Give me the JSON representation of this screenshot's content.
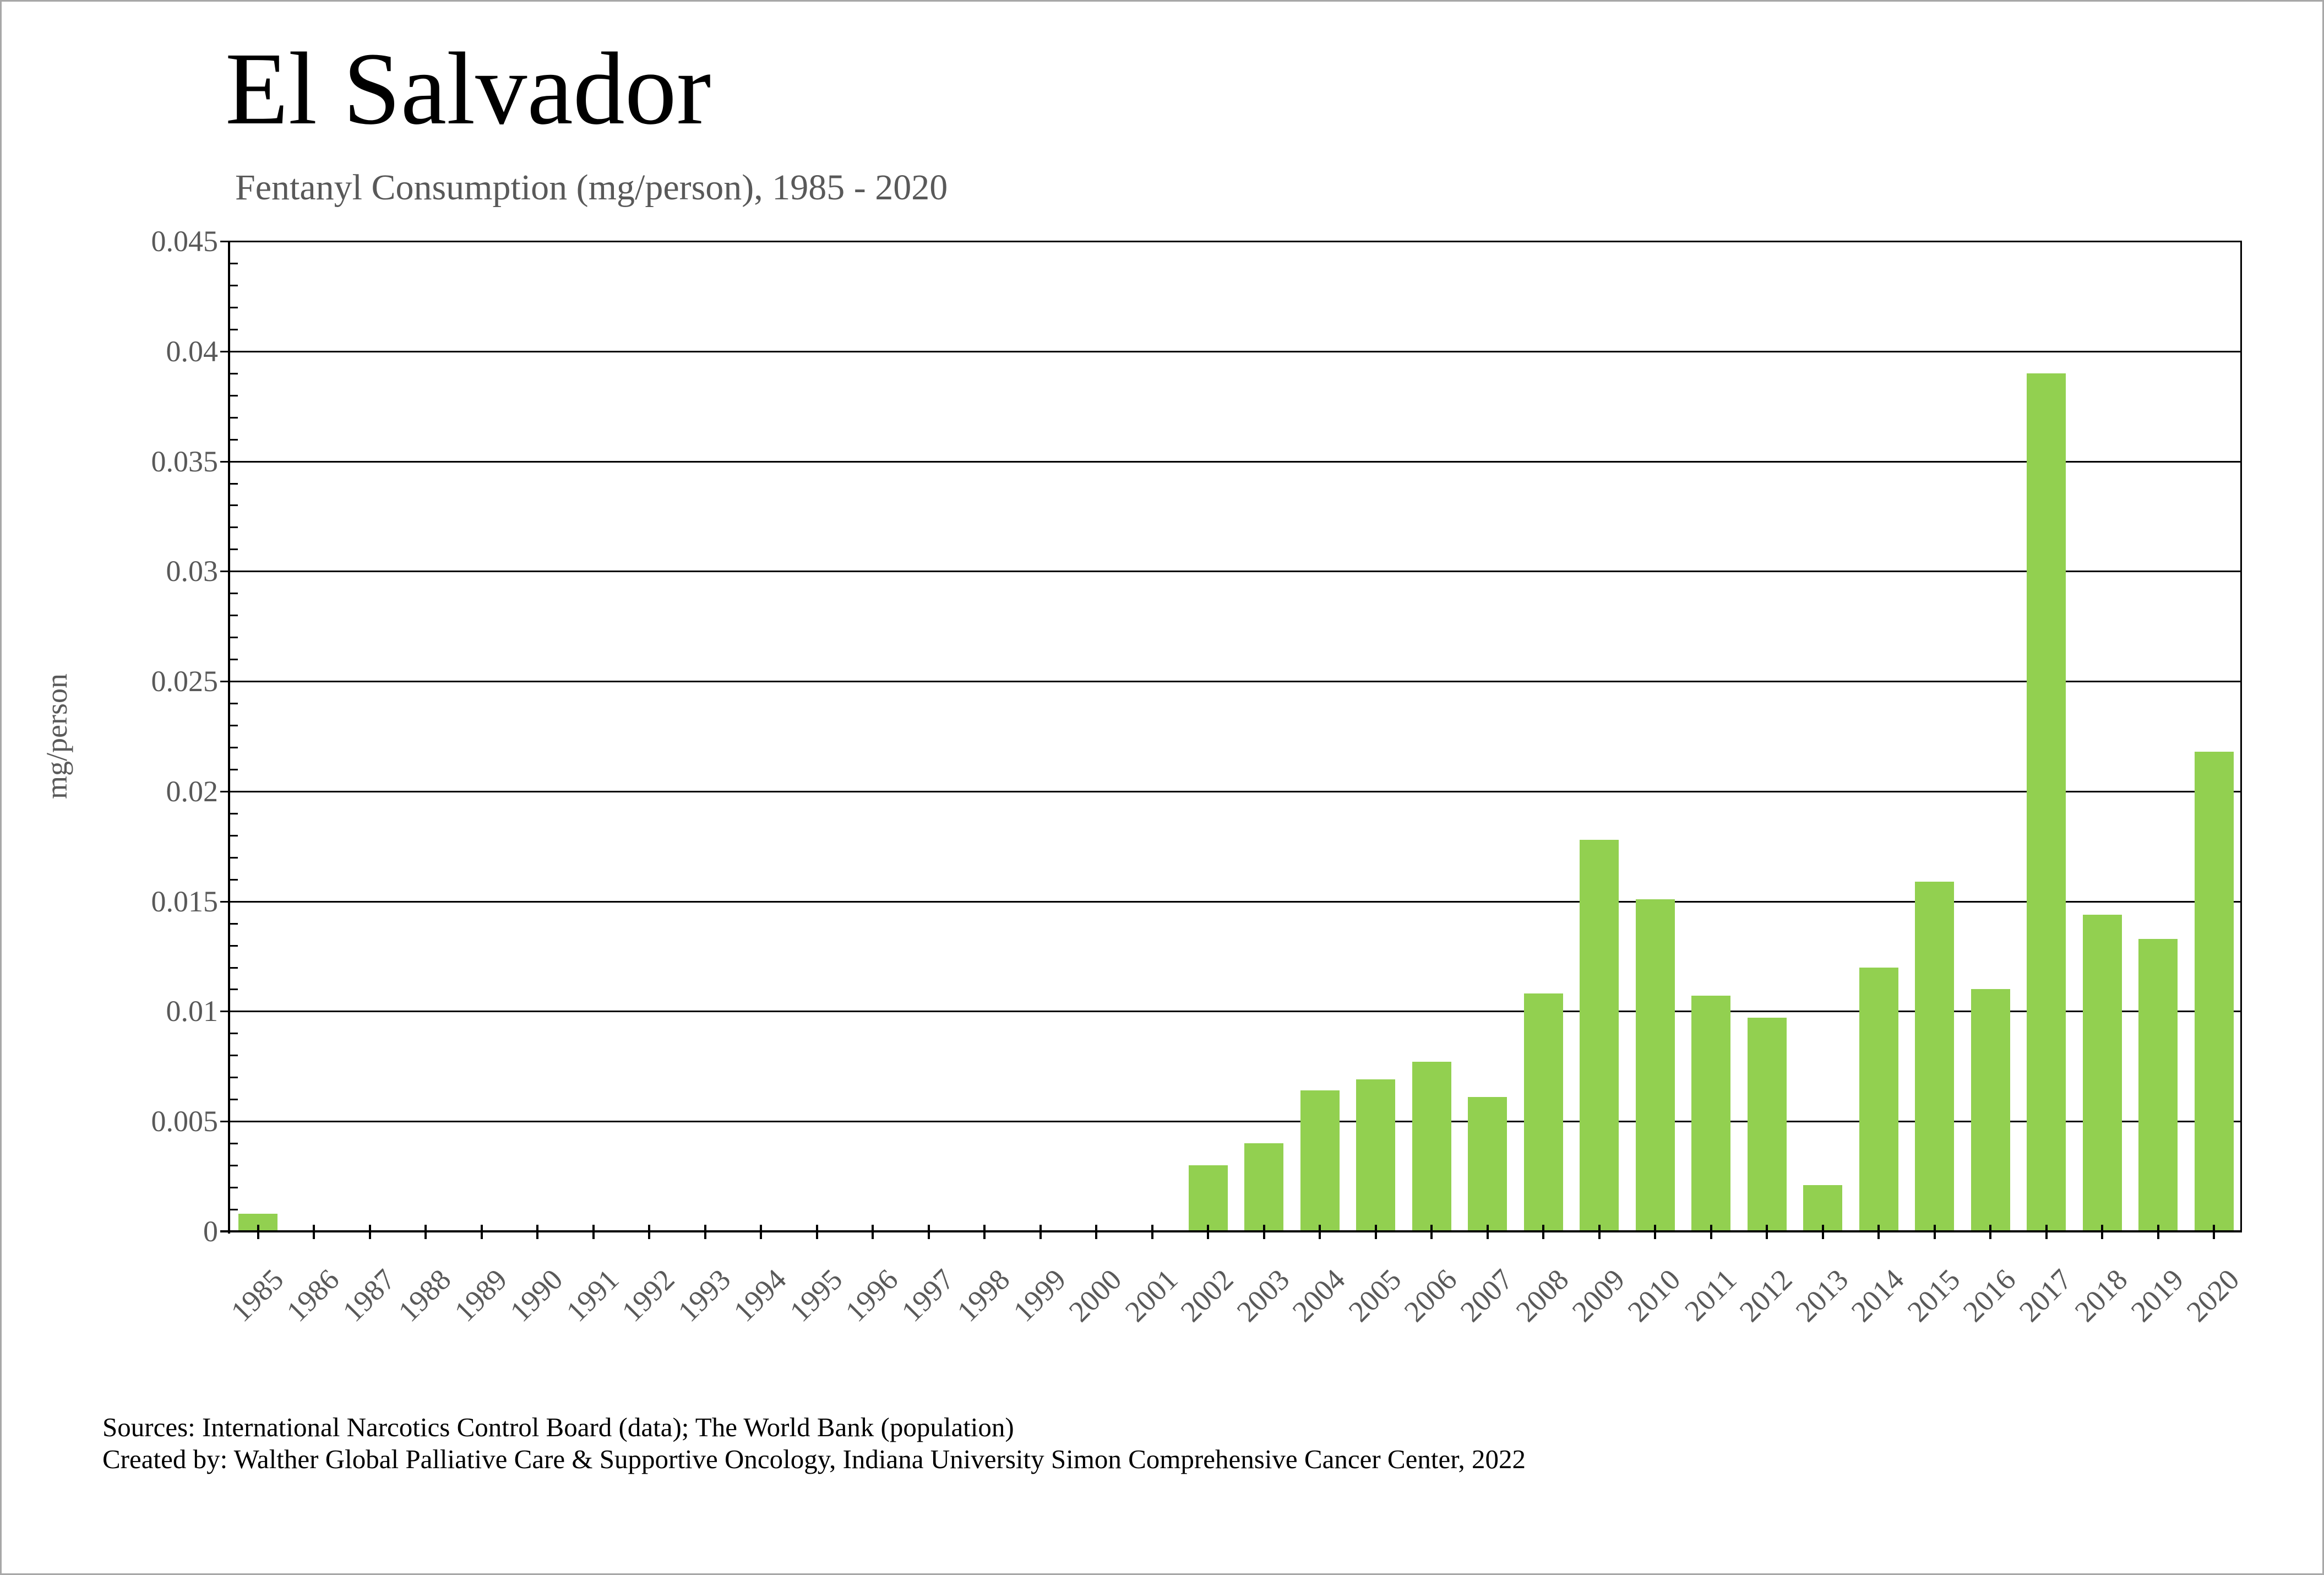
{
  "title": "El Salvador",
  "subtitle": "Fentanyl Consumption (mg/person), 1985 - 2020",
  "y_axis_title": "mg/person",
  "footer": {
    "line1": "Sources: International Narcotics Control Board (data); The World Bank (population)",
    "line2": "Created by: Walther Global Palliative Care & Supportive Oncology, Indiana University Simon Comprehensive Cancer Center, 2022"
  },
  "colors": {
    "bar": "#92D050",
    "grid": "#000000",
    "axis_text": "#595959",
    "title_text": "#000000",
    "subtitle_text": "#595959"
  },
  "chart_data": {
    "type": "bar",
    "title": "El Salvador",
    "subtitle": "Fentanyl Consumption (mg/person), 1985 - 2020",
    "xlabel": "",
    "ylabel": "mg/person",
    "categories": [
      "1985",
      "1986",
      "1987",
      "1988",
      "1989",
      "1990",
      "1991",
      "1992",
      "1993",
      "1994",
      "1995",
      "1996",
      "1997",
      "1998",
      "1999",
      "2000",
      "2001",
      "2002",
      "2003",
      "2004",
      "2005",
      "2006",
      "2007",
      "2008",
      "2009",
      "2010",
      "2011",
      "2012",
      "2013",
      "2014",
      "2015",
      "2016",
      "2017",
      "2018",
      "2019",
      "2020"
    ],
    "values": [
      0.0008,
      0,
      0,
      0,
      0,
      0,
      0,
      0,
      0,
      0,
      0,
      0,
      0,
      0,
      0,
      0,
      0,
      0.003,
      0.004,
      0.0064,
      0.0069,
      0.0077,
      0.0061,
      0.0108,
      0.0178,
      0.0151,
      0.0107,
      0.0097,
      0.0021,
      0.012,
      0.0159,
      0.011,
      0.039,
      0.0144,
      0.0133,
      0.0218
    ],
    "ylim": [
      0,
      0.045
    ],
    "ytick_step": 0.005,
    "yminor_step": 0.001,
    "ytick_labels": [
      "0",
      "0.005",
      "0.01",
      "0.015",
      "0.02",
      "0.025",
      "0.03",
      "0.035",
      "0.04",
      "0.045"
    ],
    "grid": true,
    "legend_position": "none",
    "bar_color": "#92D050"
  }
}
